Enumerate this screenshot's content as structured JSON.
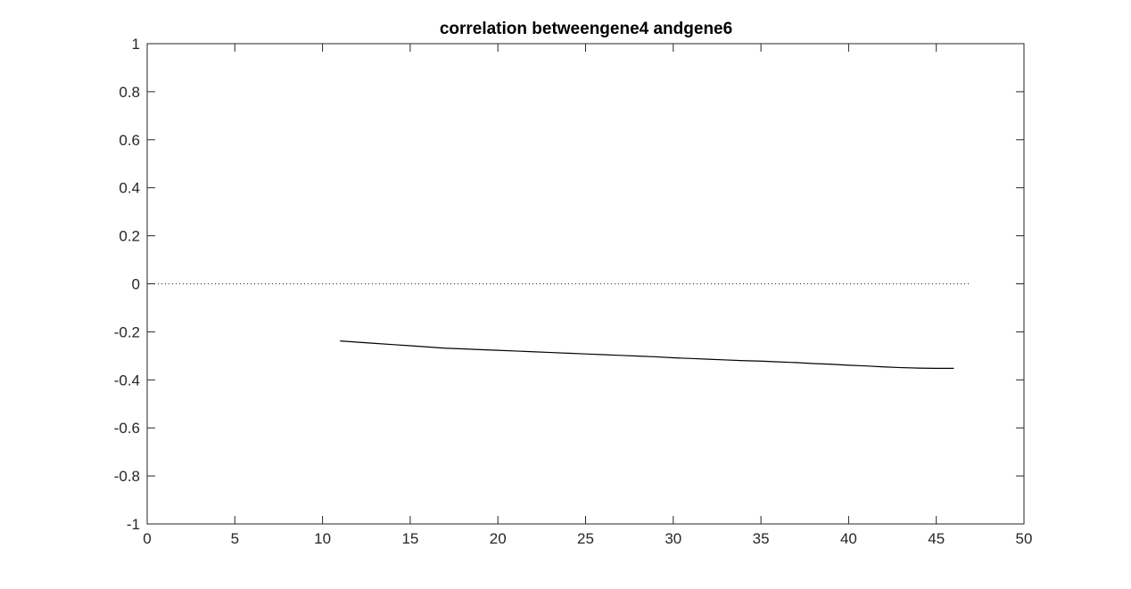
{
  "chart_data": {
    "type": "line",
    "title": "correlation betweengene4 andgene6",
    "xlabel": "",
    "ylabel": "",
    "xlim": [
      0,
      50
    ],
    "ylim": [
      -1,
      1
    ],
    "xticks": [
      0,
      5,
      10,
      15,
      20,
      25,
      30,
      35,
      40,
      45,
      50
    ],
    "yticks": [
      -1,
      -0.8,
      -0.6,
      -0.4,
      -0.2,
      0,
      0.2,
      0.4,
      0.6,
      0.8,
      1
    ],
    "grid": false,
    "reference_line": {
      "y": 0,
      "x": [
        0,
        47
      ],
      "style": "dotted"
    },
    "series": [
      {
        "x": [
          11,
          12,
          13,
          14,
          15,
          16,
          17,
          18,
          19,
          20,
          21,
          22,
          23,
          24,
          25,
          26,
          27,
          28,
          29,
          30,
          31,
          32,
          33,
          34,
          35,
          36,
          37,
          38,
          39,
          40,
          41,
          42,
          43,
          44,
          45,
          46
        ],
        "values": [
          -0.238,
          -0.243,
          -0.248,
          -0.253,
          -0.258,
          -0.263,
          -0.268,
          -0.271,
          -0.274,
          -0.277,
          -0.28,
          -0.283,
          -0.286,
          -0.289,
          -0.292,
          -0.295,
          -0.298,
          -0.301,
          -0.304,
          -0.308,
          -0.311,
          -0.314,
          -0.317,
          -0.32,
          -0.322,
          -0.325,
          -0.328,
          -0.332,
          -0.335,
          -0.339,
          -0.342,
          -0.346,
          -0.349,
          -0.351,
          -0.352,
          -0.352
        ]
      }
    ]
  }
}
